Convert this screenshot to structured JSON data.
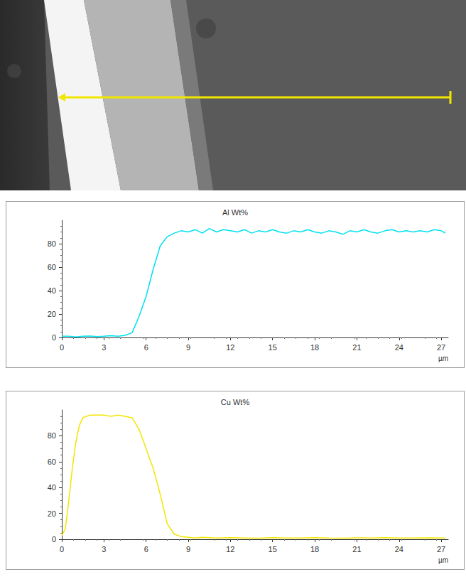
{
  "chart_data": [
    {
      "type": "line",
      "title": "Al Wt%",
      "x_label": "µm",
      "color": "#00e0f0",
      "x": [
        0,
        0.5,
        1,
        1.5,
        2,
        2.5,
        3,
        3.5,
        4,
        4.5,
        5,
        5.5,
        6,
        6.5,
        7,
        7.5,
        8,
        8.5,
        9,
        9.5,
        10,
        10.5,
        11,
        11.5,
        12,
        12.5,
        13,
        13.5,
        14,
        14.5,
        15,
        15.5,
        16,
        16.5,
        17,
        17.5,
        18,
        18.5,
        19,
        19.5,
        20,
        20.5,
        21,
        21.5,
        22,
        22.5,
        23,
        23.5,
        24,
        24.5,
        25,
        25.5,
        26,
        26.5,
        27,
        27.3
      ],
      "values": [
        1,
        1,
        0.5,
        1,
        1.2,
        0.8,
        1,
        1.5,
        1,
        1.8,
        4,
        18,
        35,
        58,
        78,
        86,
        89,
        91,
        90,
        92,
        89,
        93,
        90,
        92,
        91,
        90,
        92,
        89,
        91,
        90,
        92,
        90,
        89,
        91,
        90,
        92,
        90,
        89,
        91,
        90,
        88,
        91,
        90,
        92,
        90,
        89,
        91,
        92,
        90,
        91,
        90,
        91,
        90,
        92,
        91,
        89
      ],
      "xlim": [
        0,
        27.5
      ],
      "xticks": [
        0,
        3,
        6,
        9,
        12,
        15,
        18,
        21,
        24,
        27
      ],
      "ylim": [
        0,
        100
      ],
      "yticks": [
        0,
        20,
        40,
        60,
        80
      ],
      "grid": false
    },
    {
      "type": "line",
      "title": "Cu Wt%",
      "x_label": "µm",
      "color": "#f2e600",
      "x": [
        0,
        0.25,
        0.5,
        0.75,
        1,
        1.25,
        1.5,
        2,
        2.5,
        3,
        3.5,
        4,
        4.5,
        5,
        5.5,
        6,
        6.5,
        7,
        7.5,
        8,
        8.5,
        9,
        9.5,
        10,
        11,
        12,
        13,
        14,
        15,
        16,
        17,
        18,
        19,
        20,
        21,
        22,
        23,
        24,
        25,
        26,
        27,
        27.3
      ],
      "values": [
        3,
        8,
        30,
        55,
        75,
        88,
        94,
        96,
        96,
        96,
        95,
        96,
        95,
        94,
        85,
        70,
        55,
        35,
        12,
        4,
        2,
        1.5,
        1,
        1.5,
        1,
        1.2,
        1,
        0.8,
        1.2,
        1,
        1,
        1.3,
        1,
        0.8,
        1.1,
        1,
        1.2,
        1,
        0.9,
        1.1,
        1,
        1
      ],
      "xlim": [
        0,
        27.5
      ],
      "xticks": [
        0,
        3,
        6,
        9,
        12,
        15,
        18,
        21,
        24,
        27
      ],
      "ylim": [
        0,
        100
      ],
      "yticks": [
        0,
        20,
        40,
        60,
        80
      ],
      "grid": false
    }
  ]
}
